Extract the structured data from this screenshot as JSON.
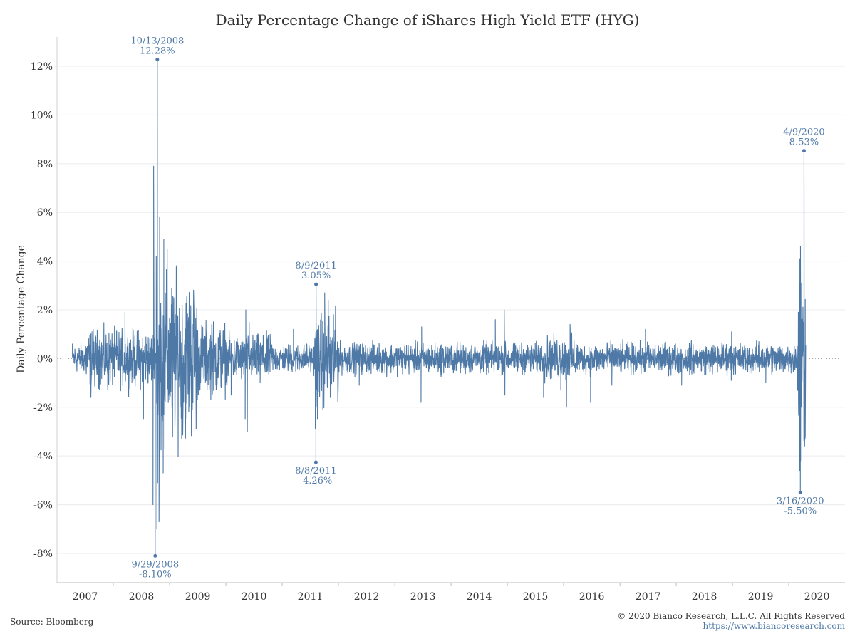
{
  "chart_data": {
    "type": "line",
    "title": "Daily Percentage Change of iShares High Yield ETF (HYG)",
    "xlabel": "",
    "ylabel": "Daily Percentage Change",
    "x_range": [
      "2007-01-01",
      "2020-12-31"
    ],
    "ylim": [
      -9.2,
      13.2
    ],
    "y_ticks": [
      -8,
      -6,
      -4,
      -2,
      0,
      2,
      4,
      6,
      8,
      10,
      12
    ],
    "y_tick_labels": [
      "-8%",
      "-6%",
      "-4%",
      "-2%",
      "0%",
      "2%",
      "4%",
      "6%",
      "8%",
      "10%",
      "12%"
    ],
    "x_ticks": [
      "2007",
      "2008",
      "2009",
      "2010",
      "2011",
      "2012",
      "2013",
      "2014",
      "2015",
      "2016",
      "2017",
      "2018",
      "2019",
      "2020"
    ],
    "zero_line": "dotted",
    "grid": "horizontal",
    "series_color": "#4e79a7",
    "series": [
      {
        "x": [
          "2007-04-11",
          "2007-06-15",
          "2007-08-09",
          "2007-08-16",
          "2007-10-01",
          "2007-11-26",
          "2008-01-22",
          "2008-03-17",
          "2008-05-01",
          "2008-07-15",
          "2008-09-15",
          "2008-09-19",
          "2008-09-29",
          "2008-10-06",
          "2008-10-10",
          "2008-10-13",
          "2008-10-15",
          "2008-10-24",
          "2008-10-28",
          "2008-11-20",
          "2008-11-24",
          "2008-12-01",
          "2008-12-16",
          "2009-01-20",
          "2009-02-10",
          "2009-03-10",
          "2009-03-23",
          "2009-05-07",
          "2009-07-15",
          "2009-10-01",
          "2010-02-04",
          "2010-05-06",
          "2010-05-10",
          "2010-05-20",
          "2010-06-01",
          "2010-08-11",
          "2011-03-15",
          "2011-08-04",
          "2011-08-08",
          "2011-08-09",
          "2011-08-10",
          "2011-08-18",
          "2011-09-22",
          "2011-10-04",
          "2011-10-27",
          "2011-11-09",
          "2011-11-30",
          "2012-05-15",
          "2013-06-20",
          "2013-06-24",
          "2014-10-15",
          "2014-12-12",
          "2014-12-16",
          "2015-08-24",
          "2015-12-14",
          "2016-01-20",
          "2016-02-12",
          "2016-06-24",
          "2016-11-09",
          "2017-06-15",
          "2018-02-05",
          "2018-12-24",
          "2018-12-26",
          "2019-08-05",
          "2020-02-27",
          "2020-03-09",
          "2020-03-10",
          "2020-03-12",
          "2020-03-13",
          "2020-03-16",
          "2020-03-17",
          "2020-03-18",
          "2020-03-20",
          "2020-03-23",
          "2020-03-24",
          "2020-03-26",
          "2020-04-09",
          "2020-04-17"
        ],
        "y": [
          0.6,
          0.3,
          -1.6,
          1.1,
          0.5,
          -1.3,
          1.1,
          1.9,
          -1.0,
          -2.5,
          -6.0,
          7.9,
          -8.1,
          4.2,
          -7.0,
          12.28,
          -5.1,
          -6.7,
          5.8,
          -4.7,
          4.9,
          -3.7,
          4.5,
          -3.2,
          1.8,
          -2.0,
          2.0,
          1.5,
          -1.3,
          1.4,
          -1.5,
          -2.5,
          2.0,
          -3.0,
          1.5,
          -1.0,
          1.2,
          -2.9,
          -4.26,
          3.05,
          -2.0,
          -2.5,
          -2.1,
          2.7,
          2.4,
          -1.6,
          1.8,
          -1.1,
          -1.8,
          1.3,
          1.6,
          2.0,
          -1.5,
          -1.6,
          -1.3,
          -2.0,
          1.4,
          -1.8,
          -1.1,
          1.2,
          -1.1,
          -0.9,
          1.1,
          -1.0,
          -1.3,
          -4.3,
          3.1,
          -4.6,
          4.1,
          -5.5,
          4.6,
          -4.2,
          1.6,
          -2.0,
          3.1,
          2.8,
          8.53,
          -3.2
        ]
      }
    ],
    "annotations": [
      {
        "date": "10/13/2008",
        "value": "12.28%",
        "x": "2008-10-13",
        "y": 12.28,
        "side": "above"
      },
      {
        "date": "9/29/2008",
        "value": "-8.10%",
        "x": "2008-09-29",
        "y": -8.1,
        "side": "below"
      },
      {
        "date": "8/9/2011",
        "value": "3.05%",
        "x": "2011-08-09",
        "y": 3.05,
        "side": "above"
      },
      {
        "date": "8/8/2011",
        "value": "-4.26%",
        "x": "2011-08-08",
        "y": -4.26,
        "side": "below"
      },
      {
        "date": "4/9/2020",
        "value": "8.53%",
        "x": "2020-04-09",
        "y": 8.53,
        "side": "above"
      },
      {
        "date": "3/16/2020",
        "value": "-5.50%",
        "x": "2020-03-16",
        "y": -5.5,
        "side": "below"
      }
    ]
  },
  "footer": {
    "source": "Source: Bloomberg",
    "copyright": "© 2020 Bianco Research, L.L.C. All Rights Reserved",
    "website": "https://www.biancoresearch.com"
  }
}
